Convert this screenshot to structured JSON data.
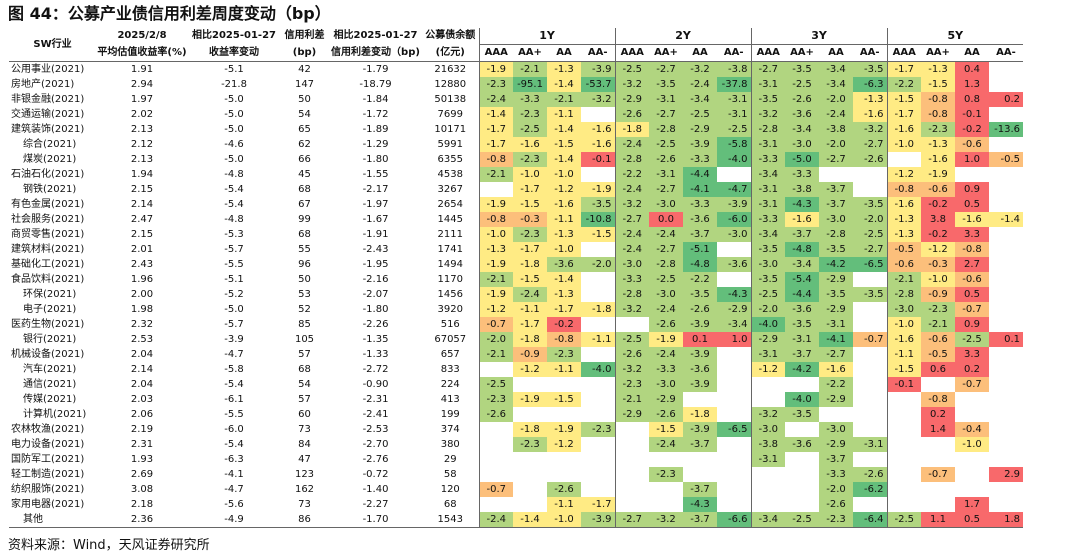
{
  "title": "图 44：公募产业债信用利差周度变动（bp）",
  "source": "资料来源：Wind，天风证券研究所",
  "header": {
    "industry": "SW行业",
    "col1": [
      "2025/2/8",
      "平均估值收益率(%)"
    ],
    "col2": [
      "相比2025-01-27",
      "收益率变动"
    ],
    "col3": [
      "信用利差",
      "(bp)"
    ],
    "col4": [
      "相比2025-01-27",
      "信用利差变动（bp)"
    ],
    "col5": [
      "公募债余额",
      "(亿元)"
    ],
    "tenors": [
      "1Y",
      "2Y",
      "3Y",
      "5Y"
    ],
    "ratings": [
      "AAA",
      "AA+",
      "AA",
      "AA-"
    ]
  },
  "colors": {
    "strong_green": "#63be7b",
    "mid_green": "#b1d580",
    "light_yellow": "#ffeb84",
    "orange": "#fcbf7b",
    "red": "#f8696b"
  },
  "chart_data": {
    "type": "table",
    "rows": [
      {
        "name": "公用事业(2021)",
        "yield": "1.91",
        "ychg": "-5.1",
        "spread": "42",
        "schg": "-1.79",
        "bal": "21632",
        "v": [
          "-1.9",
          "-2.1",
          "-1.3",
          "-3.9",
          "-2.5",
          "-2.7",
          "-3.2",
          "-3.8",
          "-2.7",
          "-3.5",
          "-3.4",
          "-3.5",
          "-1.7",
          "-1.3",
          "0.4",
          ""
        ]
      },
      {
        "name": "房地产(2021)",
        "yield": "2.94",
        "ychg": "-21.8",
        "spread": "147",
        "schg": "-18.79",
        "bal": "12880",
        "v": [
          "-2.3",
          "-95.1",
          "-1.4",
          "-53.7",
          "-3.2",
          "-3.5",
          "-2.4",
          "-37.8",
          "-3.1",
          "-2.5",
          "-3.4",
          "-6.3",
          "-2.2",
          "-1.5",
          "1.3",
          ""
        ]
      },
      {
        "name": "非银金融(2021)",
        "yield": "1.97",
        "ychg": "-5.0",
        "spread": "50",
        "schg": "-1.84",
        "bal": "50138",
        "v": [
          "-2.4",
          "-3.3",
          "-2.1",
          "-3.2",
          "-2.9",
          "-3.1",
          "-3.4",
          "-3.1",
          "-3.5",
          "-2.6",
          "-2.0",
          "-1.3",
          "-1.5",
          "-0.8",
          "0.8",
          "0.2"
        ]
      },
      {
        "name": "交通运输(2021)",
        "yield": "2.02",
        "ychg": "-5.0",
        "spread": "54",
        "schg": "-1.72",
        "bal": "7699",
        "v": [
          "-1.4",
          "-2.3",
          "-1.1",
          "",
          "-2.6",
          "-2.7",
          "-2.5",
          "-3.1",
          "-3.2",
          "-3.6",
          "-2.4",
          "-1.6",
          "-1.7",
          "-0.8",
          "-0.1",
          ""
        ]
      },
      {
        "name": "建筑装饰(2021)",
        "yield": "2.13",
        "ychg": "-5.0",
        "spread": "65",
        "schg": "-1.89",
        "bal": "10171",
        "v": [
          "-1.7",
          "-2.5",
          "-1.4",
          "-1.6",
          "-1.8",
          "-2.8",
          "-2.9",
          "-2.5",
          "-2.8",
          "-3.4",
          "-3.8",
          "-3.2",
          "-1.6",
          "-2.3",
          "-0.2",
          "-13.6"
        ]
      },
      {
        "name": "综合(2021)",
        "indent": true,
        "yield": "2.12",
        "ychg": "-4.6",
        "spread": "62",
        "schg": "-1.29",
        "bal": "5991",
        "v": [
          "-1.7",
          "-1.6",
          "-1.5",
          "-1.6",
          "-2.4",
          "-2.5",
          "-3.9",
          "-5.8",
          "-3.1",
          "-3.0",
          "-2.0",
          "-2.7",
          "-1.0",
          "-1.3",
          "-0.6",
          ""
        ]
      },
      {
        "name": "煤炭(2021)",
        "indent": true,
        "yield": "2.13",
        "ychg": "-5.0",
        "spread": "66",
        "schg": "-1.80",
        "bal": "6355",
        "v": [
          "-0.8",
          "-2.3",
          "-1.4",
          "-0.1",
          "-2.8",
          "-2.6",
          "-3.3",
          "-4.0",
          "-3.3",
          "-5.0",
          "-2.7",
          "-2.6",
          "",
          "-1.6",
          "1.0",
          "-0.5"
        ]
      },
      {
        "name": "石油石化(2021)",
        "yield": "1.94",
        "ychg": "-4.8",
        "spread": "45",
        "schg": "-1.55",
        "bal": "4538",
        "v": [
          "-2.1",
          "-1.0",
          "-1.0",
          "",
          "-2.2",
          "-3.1",
          "-4.4",
          "",
          "-3.4",
          "-3.3",
          "",
          "",
          "-1.2",
          "-1.9",
          "",
          ""
        ]
      },
      {
        "name": "钢铁(2021)",
        "indent": true,
        "yield": "2.15",
        "ychg": "-5.4",
        "spread": "68",
        "schg": "-2.17",
        "bal": "3267",
        "v": [
          "",
          "-1.7",
          "-1.2",
          "-1.9",
          "-2.4",
          "-2.7",
          "-4.1",
          "-4.7",
          "-3.1",
          "-3.8",
          "-3.7",
          "",
          "-0.8",
          "-0.6",
          "0.9",
          ""
        ]
      },
      {
        "name": "有色金属(2021)",
        "yield": "2.14",
        "ychg": "-5.4",
        "spread": "67",
        "schg": "-1.97",
        "bal": "2654",
        "v": [
          "-1.9",
          "-1.5",
          "-1.6",
          "-3.5",
          "-3.2",
          "-3.0",
          "-3.3",
          "-3.9",
          "-3.1",
          "-4.3",
          "-3.7",
          "-3.5",
          "-1.6",
          "-0.2",
          "0.5",
          ""
        ]
      },
      {
        "name": "社会服务(2021)",
        "yield": "2.47",
        "ychg": "-4.8",
        "spread": "99",
        "schg": "-1.67",
        "bal": "1445",
        "v": [
          "-0.8",
          "-0.3",
          "-1.1",
          "-10.8",
          "-2.7",
          "0.0",
          "-3.6",
          "-6.0",
          "-3.3",
          "-1.6",
          "-3.0",
          "-2.0",
          "-1.3",
          "3.8",
          "-1.6",
          "-1.4"
        ]
      },
      {
        "name": "商贸零售(2021)",
        "yield": "2.15",
        "ychg": "-5.3",
        "spread": "68",
        "schg": "-1.91",
        "bal": "2111",
        "v": [
          "-1.0",
          "-2.3",
          "-1.3",
          "-1.5",
          "-2.4",
          "-2.4",
          "-3.7",
          "-3.0",
          "-3.4",
          "-3.7",
          "-2.8",
          "-2.5",
          "-1.3",
          "-0.2",
          "3.3",
          ""
        ]
      },
      {
        "name": "建筑材料(2021)",
        "yield": "2.01",
        "ychg": "-5.7",
        "spread": "55",
        "schg": "-2.43",
        "bal": "1741",
        "v": [
          "-1.3",
          "-1.7",
          "-1.0",
          "",
          "-2.4",
          "-2.7",
          "-5.1",
          "",
          "-3.5",
          "-4.8",
          "-3.5",
          "-2.7",
          "-0.5",
          "-1.2",
          "-0.8",
          ""
        ]
      },
      {
        "name": "基础化工(2021)",
        "yield": "2.43",
        "ychg": "-5.5",
        "spread": "96",
        "schg": "-1.95",
        "bal": "1494",
        "v": [
          "-1.9",
          "-1.8",
          "-3.6",
          "-2.0",
          "-3.0",
          "-2.8",
          "-4.8",
          "-3.6",
          "-3.0",
          "-3.4",
          "-4.2",
          "-6.5",
          "-0.6",
          "-0.3",
          "2.7",
          ""
        ]
      },
      {
        "name": "食品饮料(2021)",
        "yield": "1.96",
        "ychg": "-5.1",
        "spread": "50",
        "schg": "-2.16",
        "bal": "1170",
        "v": [
          "-2.1",
          "-1.5",
          "-1.4",
          "",
          "-3.3",
          "-2.5",
          "-2.2",
          "",
          "-3.5",
          "-5.4",
          "-2.9",
          "",
          "-2.1",
          "-1.0",
          "-0.6",
          ""
        ]
      },
      {
        "name": "环保(2021)",
        "indent": true,
        "yield": "2.00",
        "ychg": "-5.2",
        "spread": "53",
        "schg": "-2.07",
        "bal": "1456",
        "v": [
          "-1.9",
          "-2.4",
          "-1.3",
          "",
          "-2.8",
          "-3.0",
          "-3.5",
          "-4.3",
          "-2.5",
          "-4.4",
          "-3.5",
          "-3.5",
          "-2.8",
          "-0.9",
          "0.5",
          ""
        ]
      },
      {
        "name": "电子(2021)",
        "indent": true,
        "yield": "1.98",
        "ychg": "-5.0",
        "spread": "52",
        "schg": "-1.80",
        "bal": "3920",
        "v": [
          "-1.2",
          "-1.1",
          "-1.7",
          "-1.8",
          "-3.2",
          "-2.4",
          "-2.6",
          "-2.9",
          "-2.0",
          "-3.6",
          "-2.9",
          "",
          "-3.0",
          "-2.3",
          "-0.7",
          ""
        ]
      },
      {
        "name": "医药生物(2021)",
        "yield": "2.32",
        "ychg": "-5.7",
        "spread": "85",
        "schg": "-2.26",
        "bal": "516",
        "v": [
          "-0.7",
          "-1.7",
          "-0.2",
          "",
          "",
          "-2.6",
          "-3.9",
          "-3.4",
          "-4.0",
          "-3.5",
          "-3.1",
          "",
          "-1.0",
          "-2.1",
          "0.9",
          ""
        ]
      },
      {
        "name": "银行(2021)",
        "indent": true,
        "yield": "2.53",
        "ychg": "-3.9",
        "spread": "105",
        "schg": "-1.35",
        "bal": "67057",
        "v": [
          "-2.0",
          "-1.8",
          "-0.8",
          "-1.1",
          "-2.5",
          "-1.9",
          "0.1",
          "1.0",
          "-2.9",
          "-3.1",
          "-4.1",
          "-0.7",
          "-1.6",
          "-0.6",
          "-2.5",
          "0.1"
        ]
      },
      {
        "name": "机械设备(2021)",
        "yield": "2.04",
        "ychg": "-4.7",
        "spread": "57",
        "schg": "-1.33",
        "bal": "657",
        "v": [
          "-2.1",
          "-0.9",
          "-2.3",
          "",
          "-2.6",
          "-2.4",
          "-3.9",
          "",
          "-3.1",
          "-3.7",
          "-2.7",
          "",
          "-1.1",
          "-0.5",
          "3.3",
          ""
        ]
      },
      {
        "name": "汽车(2021)",
        "indent": true,
        "yield": "2.14",
        "ychg": "-5.8",
        "spread": "68",
        "schg": "-2.72",
        "bal": "833",
        "v": [
          "",
          "-1.2",
          "-1.1",
          "-4.0",
          "-3.2",
          "-3.3",
          "-3.6",
          "",
          "-1.2",
          "-4.2",
          "-1.6",
          "",
          "-1.5",
          "0.6",
          "0.2",
          ""
        ]
      },
      {
        "name": "通信(2021)",
        "indent": true,
        "yield": "2.04",
        "ychg": "-5.4",
        "spread": "54",
        "schg": "-0.90",
        "bal": "224",
        "v": [
          "-2.5",
          "",
          "",
          "",
          "-2.3",
          "-3.0",
          "-3.9",
          "",
          "",
          "",
          "-2.2",
          "",
          "-0.1",
          "",
          "-0.7",
          ""
        ]
      },
      {
        "name": "传媒(2021)",
        "indent": true,
        "yield": "2.03",
        "ychg": "-6.1",
        "spread": "57",
        "schg": "-2.31",
        "bal": "413",
        "v": [
          "-2.3",
          "-1.9",
          "-1.5",
          "",
          "-2.1",
          "-2.9",
          "",
          "",
          "",
          "-4.0",
          "-2.9",
          "",
          "",
          "-0.8",
          "",
          ""
        ]
      },
      {
        "name": "计算机(2021)",
        "indent": true,
        "yield": "2.06",
        "ychg": "-5.5",
        "spread": "60",
        "schg": "-2.41",
        "bal": "199",
        "v": [
          "-2.6",
          "",
          "",
          "",
          "-2.9",
          "-2.6",
          "-1.8",
          "",
          "-3.2",
          "-3.5",
          "",
          "",
          "",
          "0.2",
          "",
          ""
        ]
      },
      {
        "name": "农林牧渔(2021)",
        "yield": "2.19",
        "ychg": "-6.0",
        "spread": "73",
        "schg": "-2.53",
        "bal": "374",
        "v": [
          "",
          "-1.8",
          "-1.9",
          "-2.3",
          "",
          "-1.5",
          "-3.9",
          "-6.5",
          "-3.0",
          "",
          "-3.0",
          "",
          "",
          "1.4",
          "-0.4",
          ""
        ]
      },
      {
        "name": "电力设备(2021)",
        "yield": "2.31",
        "ychg": "-5.4",
        "spread": "84",
        "schg": "-2.70",
        "bal": "380",
        "v": [
          "",
          "-2.3",
          "-1.2",
          "",
          "",
          "-2.4",
          "-3.7",
          "",
          "-3.8",
          "-3.6",
          "-2.9",
          "-3.1",
          "",
          "",
          "-1.0",
          ""
        ]
      },
      {
        "name": "国防军工(2021)",
        "yield": "1.93",
        "ychg": "-6.3",
        "spread": "47",
        "schg": "-2.76",
        "bal": "29",
        "v": [
          "",
          "",
          "",
          "",
          "",
          "",
          "",
          "",
          "-3.1",
          "",
          "-3.7",
          "",
          "",
          "",
          "",
          ""
        ]
      },
      {
        "name": "轻工制造(2021)",
        "yield": "2.69",
        "ychg": "-4.1",
        "spread": "123",
        "schg": "-0.72",
        "bal": "58",
        "v": [
          "",
          "",
          "",
          "",
          "",
          "-2.3",
          "",
          "",
          "",
          "",
          "-3.3",
          "-2.6",
          "",
          "-0.7",
          "",
          "2.9"
        ]
      },
      {
        "name": "纺织服饰(2021)",
        "yield": "3.08",
        "ychg": "-4.7",
        "spread": "162",
        "schg": "-1.40",
        "bal": "120",
        "v": [
          "-0.7",
          "",
          "-2.6",
          "",
          "",
          "",
          "-3.7",
          "",
          "",
          "",
          "-2.0",
          "-6.2",
          "",
          "",
          "",
          ""
        ]
      },
      {
        "name": "家用电器(2021)",
        "yield": "2.18",
        "ychg": "-5.6",
        "spread": "73",
        "schg": "-2.27",
        "bal": "68",
        "v": [
          "",
          "",
          "-1.1",
          "-1.7",
          "",
          "",
          "-4.3",
          "",
          "",
          "",
          "-2.6",
          "",
          "",
          "",
          "1.7",
          ""
        ]
      },
      {
        "name": "其他",
        "indent": true,
        "yield": "2.36",
        "ychg": "-4.9",
        "spread": "86",
        "schg": "-1.70",
        "bal": "1543",
        "v": [
          "-2.4",
          "-1.4",
          "-1.0",
          "-3.9",
          "-2.7",
          "-3.2",
          "-3.7",
          "-6.6",
          "-3.4",
          "-2.5",
          "-2.3",
          "-6.4",
          "-2.5",
          "1.1",
          "0.5",
          "1.8"
        ]
      }
    ]
  }
}
